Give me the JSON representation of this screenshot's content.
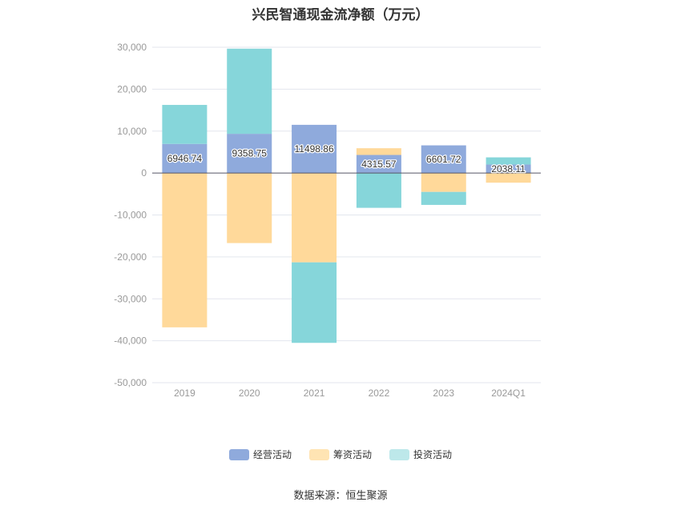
{
  "title": "兴民智通现金流净额（万元）",
  "source": "数据来源：恒生聚源",
  "colors": {
    "operating": "#8faadc",
    "financing": "#ffd99a",
    "investing": "#86d6da"
  },
  "legend": [
    {
      "label": "经营活动",
      "color": "#8faadc"
    },
    {
      "label": "筹资活动",
      "color": "#ffe4b3"
    },
    {
      "label": "投资活动",
      "color": "#bde8ea"
    }
  ],
  "chart_data": {
    "type": "bar",
    "stacked": true,
    "title": "兴民智通现金流净额（万元）",
    "categories": [
      "2019",
      "2020",
      "2021",
      "2022",
      "2023",
      "2024Q1"
    ],
    "series": [
      {
        "name": "经营活动",
        "values": [
          6946.74,
          9358.75,
          11498.86,
          4315.57,
          6601.72,
          2038.11
        ]
      },
      {
        "name": "筹资活动",
        "values": [
          -36800,
          -16700,
          -21300,
          1600,
          -4500,
          -2300
        ]
      },
      {
        "name": "投资活动",
        "values": [
          9300,
          20300,
          -19200,
          -8300,
          -3100,
          1700
        ]
      }
    ],
    "data_labels": [
      "6946.74",
      "9358.75",
      "11498.86",
      "4315.57",
      "6601.72",
      "2038.11"
    ],
    "yticks": [
      "30,000",
      "20,000",
      "10,000",
      "0",
      "-10,000",
      "-20,000",
      "-30,000",
      "-40,000",
      "-50,000"
    ],
    "ylim": [
      -50000,
      30000
    ],
    "grid": true,
    "legend_position": "bottom"
  }
}
